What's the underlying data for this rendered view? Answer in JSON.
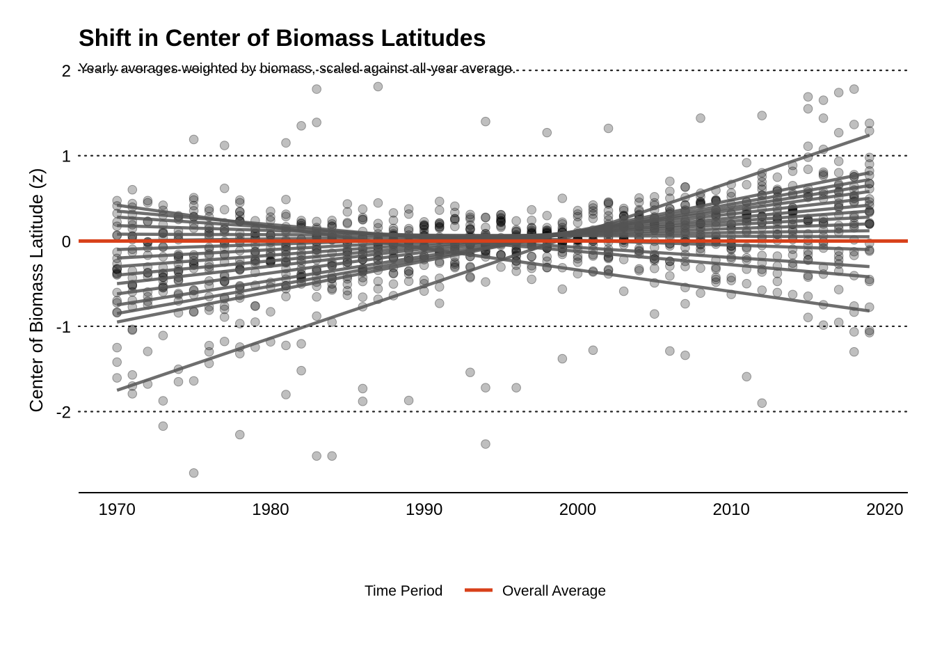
{
  "chart_data": {
    "type": "scatter",
    "title": "Shift in Center of Biomass Latitudes",
    "subtitle": "Yearly averages weighted by biomass, scaled against all-year average.",
    "xlabel": "",
    "ylabel": "Center of Biomass Latitude (z)",
    "xlim": [
      1967.5,
      2021.5
    ],
    "ylim": [
      -2.95,
      2.05
    ],
    "x_ticks": [
      "1970",
      "1980",
      "1990",
      "2000",
      "2010",
      "2020"
    ],
    "y_ticks": [
      "2",
      "1",
      "0",
      "-1",
      "-2"
    ],
    "x_tick_values": [
      1970,
      1980,
      1990,
      2000,
      2010,
      2020
    ],
    "y_tick_values": [
      2,
      1,
      0,
      -1,
      -2
    ],
    "grid": "horizontal dotted",
    "legend": {
      "placement": "bottom",
      "title": "Time Period",
      "entries": [
        {
          "label": "Overall Average",
          "color": "#d8401a"
        }
      ]
    },
    "reference_line": {
      "y": 0,
      "color": "#d8401a"
    },
    "point_color": "#000000",
    "trend_color": "#555555",
    "outlier_points": [
      {
        "x": 1970,
        "y": -1.42
      },
      {
        "x": 1970,
        "y": -1.25
      },
      {
        "x": 1971,
        "y": -1.7
      },
      {
        "x": 1973,
        "y": -2.17
      },
      {
        "x": 1974,
        "y": -1.65
      },
      {
        "x": 1975,
        "y": -2.72
      },
      {
        "x": 1975,
        "y": 1.19
      },
      {
        "x": 1976,
        "y": -1.3
      },
      {
        "x": 1977,
        "y": 1.12
      },
      {
        "x": 1978,
        "y": -2.27
      },
      {
        "x": 1978,
        "y": -1.32
      },
      {
        "x": 1981,
        "y": -1.8
      },
      {
        "x": 1981,
        "y": 1.15
      },
      {
        "x": 1982,
        "y": 1.35
      },
      {
        "x": 1982,
        "y": -1.52
      },
      {
        "x": 1983,
        "y": 1.78
      },
      {
        "x": 1983,
        "y": 1.39
      },
      {
        "x": 1983,
        "y": -2.52
      },
      {
        "x": 1984,
        "y": -2.52
      },
      {
        "x": 1986,
        "y": -1.88
      },
      {
        "x": 1986,
        "y": -1.73
      },
      {
        "x": 1987,
        "y": 1.81
      },
      {
        "x": 1989,
        "y": -1.87
      },
      {
        "x": 1993,
        "y": -1.54
      },
      {
        "x": 1994,
        "y": -2.38
      },
      {
        "x": 1994,
        "y": 1.4
      },
      {
        "x": 1994,
        "y": -1.72
      },
      {
        "x": 1996,
        "y": -1.72
      },
      {
        "x": 1998,
        "y": 1.27
      },
      {
        "x": 1999,
        "y": -1.38
      },
      {
        "x": 2001,
        "y": -1.28
      },
      {
        "x": 2002,
        "y": 1.32
      },
      {
        "x": 2006,
        "y": -1.29
      },
      {
        "x": 2007,
        "y": -1.34
      },
      {
        "x": 2008,
        "y": 1.44
      },
      {
        "x": 2011,
        "y": -1.59
      },
      {
        "x": 2012,
        "y": -1.9
      },
      {
        "x": 2012,
        "y": 1.47
      },
      {
        "x": 2015,
        "y": 1.69
      },
      {
        "x": 2015,
        "y": 1.55
      },
      {
        "x": 2016,
        "y": 1.65
      },
      {
        "x": 2016,
        "y": 1.44
      },
      {
        "x": 2017,
        "y": 1.74
      },
      {
        "x": 2018,
        "y": 1.78
      },
      {
        "x": 2018,
        "y": -1.3
      },
      {
        "x": 2019,
        "y": 1.29
      },
      {
        "x": 2019,
        "y": -1.05
      }
    ],
    "trend_lines": [
      {
        "x": [
          1970,
          2019
        ],
        "y": [
          -1.75,
          1.24
        ]
      },
      {
        "x": [
          1970,
          2019
        ],
        "y": [
          -0.95,
          0.8
        ]
      },
      {
        "x": [
          1970,
          2019
        ],
        "y": [
          -0.85,
          0.72
        ]
      },
      {
        "x": [
          1970,
          2019
        ],
        "y": [
          -0.75,
          0.65
        ]
      },
      {
        "x": [
          1970,
          2019
        ],
        "y": [
          -0.62,
          0.58
        ]
      },
      {
        "x": [
          1970,
          2019
        ],
        "y": [
          -0.5,
          0.5
        ]
      },
      {
        "x": [
          1970,
          2019
        ],
        "y": [
          -0.4,
          0.42
        ]
      },
      {
        "x": [
          1970,
          2019
        ],
        "y": [
          -0.3,
          0.35
        ]
      },
      {
        "x": [
          1970,
          2019
        ],
        "y": [
          -0.2,
          0.28
        ]
      },
      {
        "x": [
          1970,
          2019
        ],
        "y": [
          -0.1,
          0.2
        ]
      },
      {
        "x": [
          1970,
          2019
        ],
        "y": [
          0.0,
          0.12
        ]
      },
      {
        "x": [
          1970,
          2019
        ],
        "y": [
          0.08,
          0.05
        ]
      },
      {
        "x": [
          1970,
          2019
        ],
        "y": [
          0.18,
          -0.1
        ]
      },
      {
        "x": [
          1970,
          2019
        ],
        "y": [
          0.28,
          -0.3
        ]
      },
      {
        "x": [
          1970,
          2019
        ],
        "y": [
          0.35,
          -0.42
        ]
      },
      {
        "x": [
          1970,
          2019
        ],
        "y": [
          0.42,
          -0.82
        ]
      }
    ]
  }
}
